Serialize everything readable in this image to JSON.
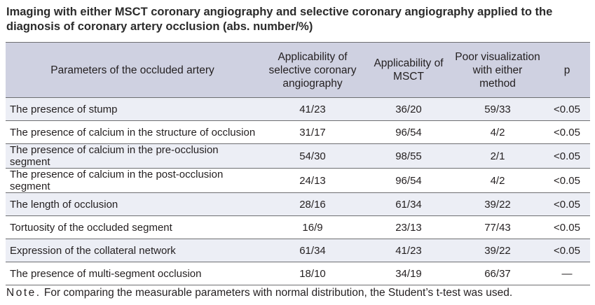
{
  "title": "Imaging with either MSCT coronary angiography and selective coronary angiography applied to the diagnosis of coronary artery occlusion (abs. number/%)",
  "header": {
    "parameter": "Parameters of the occluded artery",
    "selective": "Applicability of selective coronary angiography",
    "msct": "Applicability of MSCT",
    "poor": "Poor visualization with either method",
    "p": "p"
  },
  "rows": [
    {
      "parameter": "The presence of stump",
      "selective": "41/23",
      "msct": "36/20",
      "poor": "59/33",
      "p": "<0.05"
    },
    {
      "parameter": "The presence of calcium in the structure of occlusion",
      "selective": "31/17",
      "msct": "96/54",
      "poor": "4/2",
      "p": "<0.05"
    },
    {
      "parameter": "The presence of calcium in the pre-occlusion segment",
      "selective": "54/30",
      "msct": "98/55",
      "poor": "2/1",
      "p": "<0.05"
    },
    {
      "parameter": "The presence of calcium in the post-occlusion segment",
      "selective": "24/13",
      "msct": "96/54",
      "poor": "4/2",
      "p": "<0.05"
    },
    {
      "parameter": "The length of occlusion",
      "selective": "28/16",
      "msct": "61/34",
      "poor": "39/22",
      "p": "<0.05"
    },
    {
      "parameter": "Tortuosity of the occluded segment",
      "selective": "16/9",
      "msct": "23/13",
      "poor": "77/43",
      "p": "<0.05"
    },
    {
      "parameter": "Expression of the collateral network",
      "selective": "61/34",
      "msct": "41/23",
      "poor": "39/22",
      "p": "<0.05"
    },
    {
      "parameter": "The presence of multi-segment occlusion",
      "selective": "18/10",
      "msct": "34/19",
      "poor": "66/37",
      "p": "—"
    }
  ],
  "note": {
    "lead": "Note.",
    "text": " For comparing the measurable parameters with normal distribution, the Student’s t-test was used."
  }
}
